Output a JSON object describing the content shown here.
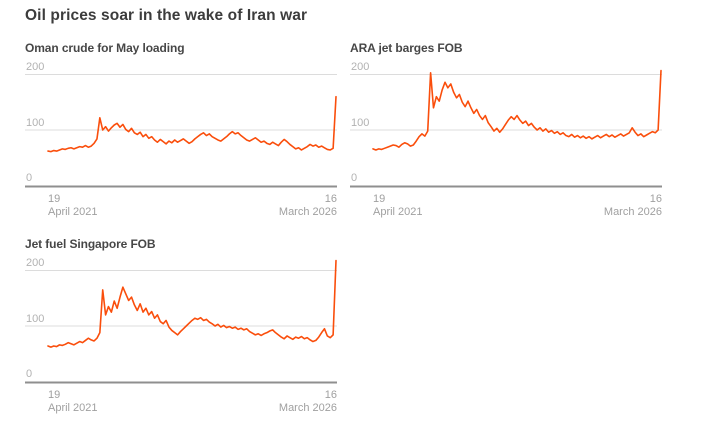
{
  "title": "Oil prices soar in the wake of Iran war",
  "colors": {
    "line": "#fa4e0c",
    "grid": "#dcdcdc",
    "baseline": "#8f8f8f",
    "title_text": "#3c3c3c",
    "subtitle_text": "#474747",
    "tick_text": "#a8a8a8"
  },
  "chart_data": [
    {
      "type": "line",
      "title": "Oman crude for May loading",
      "x_start": {
        "day": "19",
        "monthyear": "April 2021"
      },
      "x_end": {
        "day": "16",
        "monthyear": "March 2026"
      },
      "y_ticks": [
        0,
        100,
        200
      ],
      "y_tick_labels": [
        "200",
        "100",
        "0"
      ],
      "ylim": [
        0,
        220
      ],
      "grid": "horizontal",
      "legend": "none",
      "series": [
        {
          "name": "Oman crude for May loading",
          "values": [
            62,
            61,
            63,
            62,
            64,
            66,
            65,
            67,
            68,
            66,
            68,
            70,
            69,
            72,
            69,
            71,
            76,
            84,
            122,
            100,
            106,
            98,
            104,
            109,
            112,
            105,
            110,
            101,
            97,
            103,
            95,
            92,
            96,
            88,
            92,
            85,
            88,
            82,
            78,
            83,
            79,
            75,
            80,
            77,
            82,
            78,
            81,
            84,
            80,
            76,
            79,
            84,
            88,
            92,
            95,
            90,
            93,
            88,
            85,
            82,
            80,
            84,
            88,
            93,
            97,
            93,
            95,
            90,
            86,
            82,
            80,
            83,
            86,
            82,
            78,
            80,
            76,
            74,
            78,
            75,
            72,
            78,
            83,
            79,
            74,
            70,
            66,
            68,
            64,
            67,
            70,
            74,
            71,
            73,
            69,
            71,
            68,
            65,
            64,
            67,
            160
          ]
        }
      ]
    },
    {
      "type": "line",
      "title": "ARA jet barges FOB",
      "x_start": {
        "day": "19",
        "monthyear": "April 2021"
      },
      "x_end": {
        "day": "16",
        "monthyear": "March 2026"
      },
      "y_ticks": [
        0,
        100,
        200
      ],
      "y_tick_labels": [
        "200",
        "100",
        "0"
      ],
      "ylim": [
        0,
        220
      ],
      "grid": "horizontal",
      "legend": "none",
      "series": [
        {
          "name": "ARA jet barges FOB",
          "values": [
            66,
            64,
            66,
            65,
            67,
            69,
            71,
            73,
            72,
            69,
            74,
            77,
            75,
            71,
            73,
            80,
            88,
            93,
            89,
            98,
            203,
            140,
            160,
            152,
            172,
            186,
            176,
            183,
            168,
            158,
            164,
            150,
            142,
            152,
            140,
            130,
            137,
            126,
            119,
            126,
            113,
            106,
            98,
            103,
            96,
            102,
            110,
            118,
            124,
            119,
            126,
            118,
            112,
            116,
            108,
            112,
            105,
            100,
            104,
            98,
            102,
            96,
            99,
            94,
            97,
            92,
            95,
            90,
            88,
            92,
            87,
            90,
            86,
            89,
            85,
            88,
            84,
            87,
            90,
            86,
            89,
            92,
            88,
            91,
            87,
            90,
            93,
            89,
            92,
            95,
            104,
            96,
            90,
            93,
            88,
            91,
            94,
            97,
            95,
            100,
            207
          ]
        }
      ]
    },
    {
      "type": "line",
      "title": "Jet fuel Singapore FOB",
      "x_start": {
        "day": "19",
        "monthyear": "April 2021"
      },
      "x_end": {
        "day": "16",
        "monthyear": "March 2026"
      },
      "y_ticks": [
        0,
        100,
        200
      ],
      "y_tick_labels": [
        "200",
        "100",
        "0"
      ],
      "ylim": [
        0,
        220
      ],
      "grid": "horizontal",
      "legend": "none",
      "series": [
        {
          "name": "Jet fuel Singapore FOB",
          "values": [
            64,
            62,
            64,
            63,
            66,
            65,
            67,
            70,
            68,
            66,
            69,
            72,
            70,
            74,
            78,
            75,
            73,
            78,
            88,
            165,
            120,
            135,
            125,
            145,
            132,
            152,
            170,
            158,
            146,
            152,
            138,
            128,
            140,
            125,
            132,
            120,
            126,
            114,
            120,
            108,
            104,
            110,
            98,
            92,
            88,
            84,
            90,
            95,
            100,
            105,
            110,
            114,
            112,
            115,
            110,
            112,
            107,
            104,
            100,
            103,
            98,
            101,
            97,
            99,
            96,
            98,
            94,
            96,
            93,
            95,
            90,
            87,
            84,
            86,
            83,
            86,
            88,
            91,
            93,
            88,
            84,
            80,
            77,
            82,
            79,
            76,
            80,
            78,
            81,
            77,
            79,
            75,
            72,
            74,
            80,
            88,
            95,
            82,
            79,
            84,
            218
          ]
        }
      ]
    }
  ]
}
